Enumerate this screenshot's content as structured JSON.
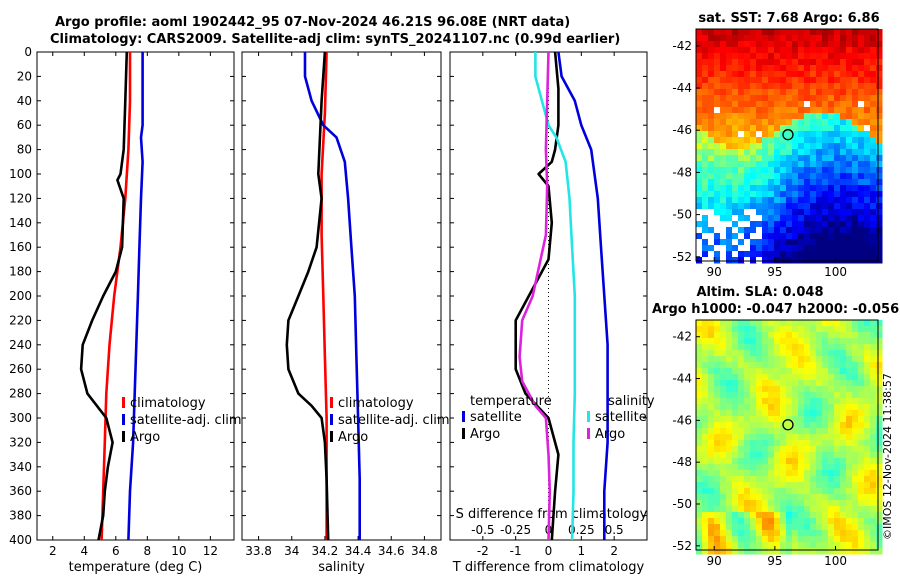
{
  "figure": {
    "title_line1": "Argo profile: aoml 1902442_95 07-Nov-2024 46.21S 96.08E (NRT data)",
    "title_line2": "Climatology: CARS2009. Satellite-adj clim: synTS_20241107.nc (0.99d earlier)",
    "copyright": "©IMOS 12-Nov-2024 11:38:57"
  },
  "colors": {
    "climatology": "#ff0000",
    "satellite": "#0000dd",
    "argo": "#000000",
    "salinity_sat": "#22e5e5",
    "salinity_diff": "#dd22dd",
    "frame": "#000000"
  },
  "chart_data": [
    {
      "type": "line",
      "name": "temperature-profile",
      "xlabel": "temperature (deg C)",
      "ylabel": "",
      "xlim": [
        1,
        13.5
      ],
      "ylim": [
        0,
        400
      ],
      "xticks": [
        2,
        4,
        6,
        8,
        10,
        12
      ],
      "yticks": [
        0,
        20,
        40,
        60,
        80,
        100,
        120,
        140,
        160,
        180,
        200,
        220,
        240,
        260,
        280,
        300,
        320,
        340,
        360,
        380,
        400
      ],
      "legend": [
        "climatology",
        "satellite-adj. clim",
        "Argo"
      ],
      "series": [
        {
          "name": "climatology",
          "color": "#ff0000",
          "points": [
            [
              6.9,
              0
            ],
            [
              6.9,
              40
            ],
            [
              6.8,
              80
            ],
            [
              6.6,
              120
            ],
            [
              6.3,
              160
            ],
            [
              5.9,
              200
            ],
            [
              5.6,
              240
            ],
            [
              5.4,
              280
            ],
            [
              5.3,
              320
            ],
            [
              5.2,
              360
            ],
            [
              5.1,
              400
            ]
          ]
        },
        {
          "name": "satellite-adj. clim",
          "color": "#0000dd",
          "points": [
            [
              7.7,
              0
            ],
            [
              7.7,
              60
            ],
            [
              7.6,
              70
            ],
            [
              7.7,
              90
            ],
            [
              7.6,
              120
            ],
            [
              7.5,
              160
            ],
            [
              7.4,
              200
            ],
            [
              7.3,
              240
            ],
            [
              7.2,
              280
            ],
            [
              7.1,
              320
            ],
            [
              6.9,
              360
            ],
            [
              6.8,
              400
            ]
          ]
        },
        {
          "name": "Argo",
          "color": "#000000",
          "points": [
            [
              6.7,
              0
            ],
            [
              6.6,
              40
            ],
            [
              6.5,
              80
            ],
            [
              6.3,
              100
            ],
            [
              6.1,
              105
            ],
            [
              6.5,
              120
            ],
            [
              6.4,
              160
            ],
            [
              6.0,
              180
            ],
            [
              5.2,
              200
            ],
            [
              4.5,
              220
            ],
            [
              3.9,
              240
            ],
            [
              3.8,
              260
            ],
            [
              4.2,
              280
            ],
            [
              4.8,
              290
            ],
            [
              5.4,
              300
            ],
            [
              5.8,
              320
            ],
            [
              5.5,
              340
            ],
            [
              5.3,
              360
            ],
            [
              5.2,
              380
            ],
            [
              4.9,
              400
            ]
          ]
        }
      ]
    },
    {
      "type": "line",
      "name": "salinity-profile",
      "xlabel": "salinity",
      "ylabel": "",
      "xlim": [
        33.7,
        34.9
      ],
      "ylim": [
        0,
        400
      ],
      "xticks": [
        33.8,
        34,
        34.2,
        34.4,
        34.6,
        34.8
      ],
      "legend": [
        "climatology",
        "satellite-adj. clim",
        "Argo"
      ],
      "series": [
        {
          "name": "climatology",
          "color": "#ff0000",
          "points": [
            [
              34.21,
              0
            ],
            [
              34.2,
              50
            ],
            [
              34.18,
              100
            ],
            [
              34.18,
              150
            ],
            [
              34.19,
              200
            ],
            [
              34.2,
              250
            ],
            [
              34.21,
              300
            ],
            [
              34.21,
              350
            ],
            [
              34.21,
              400
            ]
          ]
        },
        {
          "name": "satellite-adj. clim",
          "color": "#0000dd",
          "points": [
            [
              34.08,
              0
            ],
            [
              34.08,
              20
            ],
            [
              34.12,
              40
            ],
            [
              34.19,
              60
            ],
            [
              34.27,
              70
            ],
            [
              34.32,
              90
            ],
            [
              34.34,
              120
            ],
            [
              34.36,
              160
            ],
            [
              34.38,
              200
            ],
            [
              34.39,
              250
            ],
            [
              34.4,
              300
            ],
            [
              34.41,
              350
            ],
            [
              34.41,
              400
            ]
          ]
        },
        {
          "name": "Argo",
          "color": "#000000",
          "points": [
            [
              34.2,
              0
            ],
            [
              34.18,
              40
            ],
            [
              34.16,
              100
            ],
            [
              34.18,
              120
            ],
            [
              34.15,
              160
            ],
            [
              34.1,
              180
            ],
            [
              34.04,
              200
            ],
            [
              33.98,
              220
            ],
            [
              33.97,
              240
            ],
            [
              33.98,
              260
            ],
            [
              34.04,
              280
            ],
            [
              34.12,
              290
            ],
            [
              34.18,
              300
            ],
            [
              34.2,
              320
            ],
            [
              34.21,
              350
            ],
            [
              34.22,
              400
            ]
          ]
        }
      ]
    },
    {
      "type": "line",
      "name": "difference-profile",
      "xlabel": "T difference from climatology",
      "x2label": "S difference from climatology",
      "xlim": [
        -3,
        3
      ],
      "x2lim": [
        -0.75,
        0.75
      ],
      "ylim": [
        0,
        400
      ],
      "xticks": [
        -2,
        -1,
        0,
        1,
        2
      ],
      "x2ticks": [
        -0.5,
        -0.25,
        0,
        0.25,
        0.5
      ],
      "legend_temperature": [
        "temperature",
        "satellite",
        "Argo"
      ],
      "legend_salinity": [
        "salinity",
        "satellite",
        "Argo"
      ],
      "series": [
        {
          "name": "temperature satellite",
          "color": "#0000dd",
          "axis": "T",
          "points": [
            [
              0.3,
              0
            ],
            [
              0.4,
              20
            ],
            [
              0.8,
              40
            ],
            [
              1.0,
              60
            ],
            [
              1.3,
              80
            ],
            [
              1.5,
              120
            ],
            [
              1.6,
              160
            ],
            [
              1.7,
              200
            ],
            [
              1.8,
              240
            ],
            [
              1.8,
              280
            ],
            [
              1.8,
              320
            ],
            [
              1.7,
              360
            ],
            [
              1.7,
              400
            ]
          ]
        },
        {
          "name": "temperature Argo",
          "color": "#000000",
          "axis": "T",
          "points": [
            [
              0.2,
              0
            ],
            [
              0.3,
              30
            ],
            [
              0.3,
              60
            ],
            [
              0.2,
              80
            ],
            [
              0.1,
              90
            ],
            [
              -0.3,
              100
            ],
            [
              0.0,
              110
            ],
            [
              0.1,
              140
            ],
            [
              0.0,
              170
            ],
            [
              -0.6,
              200
            ],
            [
              -1.0,
              220
            ],
            [
              -1.0,
              260
            ],
            [
              -0.7,
              280
            ],
            [
              0.0,
              300
            ],
            [
              0.3,
              330
            ],
            [
              0.2,
              360
            ],
            [
              0.1,
              400
            ]
          ]
        },
        {
          "name": "salinity satellite",
          "color": "#22e5e5",
          "axis": "S",
          "points": [
            [
              -0.1,
              0
            ],
            [
              -0.1,
              20
            ],
            [
              -0.05,
              40
            ],
            [
              0.0,
              60
            ],
            [
              0.06,
              70
            ],
            [
              0.13,
              90
            ],
            [
              0.16,
              120
            ],
            [
              0.18,
              160
            ],
            [
              0.2,
              200
            ],
            [
              0.2,
              240
            ],
            [
              0.2,
              280
            ],
            [
              0.19,
              320
            ],
            [
              0.19,
              360
            ],
            [
              0.18,
              400
            ]
          ]
        },
        {
          "name": "salinity Argo",
          "color": "#dd22dd",
          "axis": "S",
          "points": [
            [
              0.0,
              0
            ],
            [
              -0.01,
              40
            ],
            [
              -0.02,
              80
            ],
            [
              -0.01,
              110
            ],
            [
              -0.02,
              150
            ],
            [
              -0.06,
              170
            ],
            [
              -0.12,
              200
            ],
            [
              -0.2,
              220
            ],
            [
              -0.22,
              250
            ],
            [
              -0.2,
              270
            ],
            [
              -0.1,
              290
            ],
            [
              -0.02,
              300
            ],
            [
              0.0,
              330
            ],
            [
              0.01,
              360
            ],
            [
              0.0,
              400
            ]
          ]
        }
      ]
    },
    {
      "type": "heatmap",
      "name": "sst-map",
      "title": "sat. SST: 7.68 Argo: 6.86",
      "xlim": [
        88.5,
        103.5
      ],
      "ylim": [
        -52.2,
        -41.2
      ],
      "xticks": [
        90,
        95,
        100
      ],
      "yticks": [
        -42,
        -44,
        -46,
        -48,
        -50,
        -52
      ],
      "marker": {
        "lon": 96.08,
        "lat": -46.21
      }
    },
    {
      "type": "heatmap",
      "name": "sla-map",
      "title": "Altim. SLA: 0.048",
      "subtitle": "Argo h1000: -0.047 h2000: -0.056",
      "xlim": [
        88.5,
        103.5
      ],
      "ylim": [
        -52.2,
        -41.2
      ],
      "xticks": [
        90,
        95,
        100
      ],
      "yticks": [
        -42,
        -44,
        -46,
        -48,
        -50,
        -52
      ],
      "marker": {
        "lon": 96.08,
        "lat": -46.21
      }
    }
  ]
}
